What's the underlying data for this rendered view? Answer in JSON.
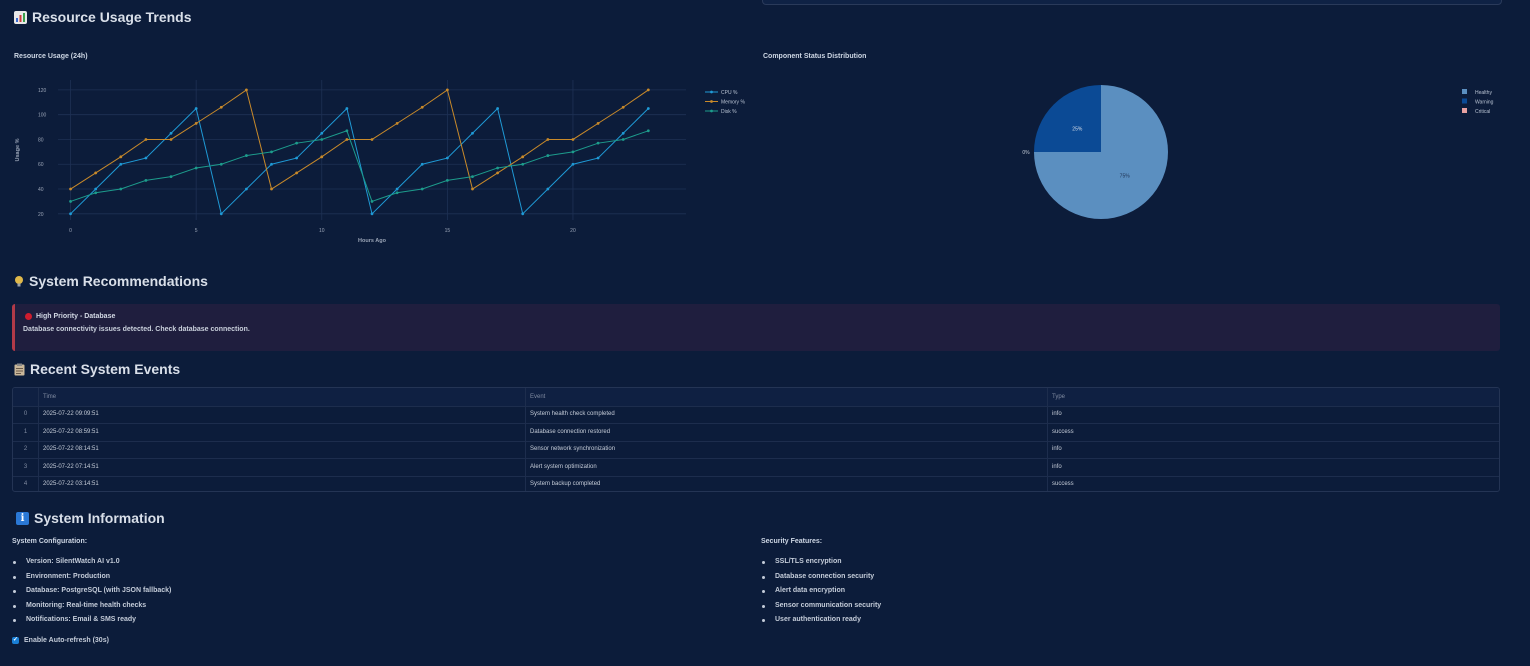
{
  "resource_section": {
    "title": "Resource Usage Trends",
    "icon": "bar-chart-icon"
  },
  "line_chart_title": "Resource Usage (24h)",
  "pie_chart_title": "Component Status Distribution",
  "chart_data": [
    {
      "type": "line",
      "title": "Resource Usage (24h)",
      "xlabel": "Hours Ago",
      "ylabel": "Usage %",
      "x": [
        0,
        1,
        2,
        3,
        4,
        5,
        6,
        7,
        8,
        9,
        10,
        11,
        12,
        13,
        14,
        15,
        16,
        17,
        18,
        19,
        20,
        21,
        22,
        23
      ],
      "xticks": [
        0,
        5,
        10,
        15,
        20
      ],
      "yticks": [
        20,
        40,
        60,
        80,
        100,
        120
      ],
      "xlim": [
        -0.5,
        24.5
      ],
      "ylim": [
        15,
        128
      ],
      "grid": true,
      "legend": "right",
      "series": [
        {
          "name": "CPU %",
          "color": "#1f9ad6",
          "values": [
            20,
            40,
            60,
            65,
            85,
            105,
            20,
            40,
            60,
            65,
            85,
            105,
            20,
            40,
            60,
            65,
            85,
            105,
            20,
            40,
            60,
            65,
            85,
            105
          ]
        },
        {
          "name": "Memory %",
          "color": "#c98a2a",
          "values": [
            40,
            53,
            66,
            80,
            80,
            93,
            106,
            120,
            40,
            53,
            66,
            80,
            80,
            93,
            106,
            120,
            40,
            53,
            66,
            80,
            80,
            93,
            106,
            120
          ]
        },
        {
          "name": "Disk %",
          "color": "#1d9c8c",
          "values": [
            30,
            37,
            40,
            47,
            50,
            57,
            60,
            67,
            70,
            77,
            80,
            87,
            30,
            37,
            40,
            47,
            50,
            57,
            60,
            67,
            70,
            77,
            80,
            87
          ]
        }
      ]
    },
    {
      "type": "pie",
      "title": "Component Status Distribution",
      "legend": "top-right",
      "slices": [
        {
          "label": "Healthy",
          "value": 75,
          "text": "75%",
          "color": "#5b8fc0"
        },
        {
          "label": "Warning",
          "value": 25,
          "text": "25%",
          "color": "#0b4a95"
        },
        {
          "label": "Critical",
          "value": 0,
          "text": "0%",
          "color": "#e8a1a1"
        }
      ]
    }
  ],
  "recommendations": {
    "title": "System Recommendations",
    "alert_title": "High Priority - Database",
    "alert_text": "Database connectivity issues detected. Check database connection."
  },
  "events": {
    "title": "Recent System Events",
    "columns": [
      "Time",
      "Event",
      "Type"
    ],
    "rows": [
      {
        "idx": "0",
        "time": "2025-07-22 09:09:51",
        "event": "System health check completed",
        "type": "info"
      },
      {
        "idx": "1",
        "time": "2025-07-22 08:59:51",
        "event": "Database connection restored",
        "type": "success"
      },
      {
        "idx": "2",
        "time": "2025-07-22 08:14:51",
        "event": "Sensor network synchronization",
        "type": "info"
      },
      {
        "idx": "3",
        "time": "2025-07-22 07:14:51",
        "event": "Alert system optimization",
        "type": "info"
      },
      {
        "idx": "4",
        "time": "2025-07-22 03:14:51",
        "event": "System backup completed",
        "type": "success"
      }
    ]
  },
  "system_info": {
    "title": "System Information",
    "config_title": "System Configuration:",
    "config_items": [
      "Version: SilentWatch AI v1.0",
      "Environment: Production",
      "Database: PostgreSQL (with JSON fallback)",
      "Monitoring: Real-time health checks",
      "Notifications: Email & SMS ready"
    ],
    "security_title": "Security Features:",
    "security_items": [
      "SSL/TLS encryption",
      "Database connection security",
      "Alert data encryption",
      "Sensor communication security",
      "User authentication ready"
    ]
  },
  "auto_refresh": {
    "label": "Enable Auto-refresh (30s)",
    "checked": true
  }
}
